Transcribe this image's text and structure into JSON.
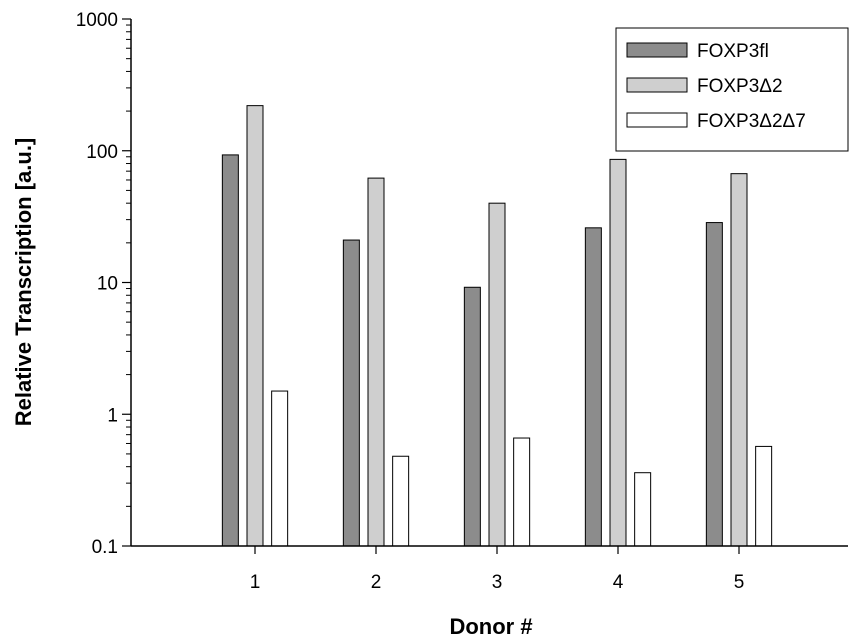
{
  "chart_data": {
    "type": "bar",
    "title": "",
    "xlabel": "Donor #",
    "ylabel": "Relative Transcription [a.u.]",
    "yscale": "log",
    "ylim": [
      0.1,
      1000
    ],
    "yticks": [
      "0.1",
      "1",
      "10",
      "100",
      "1000"
    ],
    "categories": [
      "1",
      "2",
      "3",
      "4",
      "5"
    ],
    "legend_position": "top-right",
    "series": [
      {
        "name": "FOXP3fl",
        "color": "#8c8c8c",
        "values": [
          93,
          21,
          9.2,
          26,
          28.5
        ]
      },
      {
        "name": "FOXP3Δ2",
        "color": "#cfcfcf",
        "values": [
          220,
          62,
          40,
          86,
          67
        ]
      },
      {
        "name": "FOXP3Δ2Δ7",
        "color": "#ffffff",
        "values": [
          1.5,
          0.48,
          0.66,
          0.36,
          0.57
        ]
      }
    ]
  }
}
